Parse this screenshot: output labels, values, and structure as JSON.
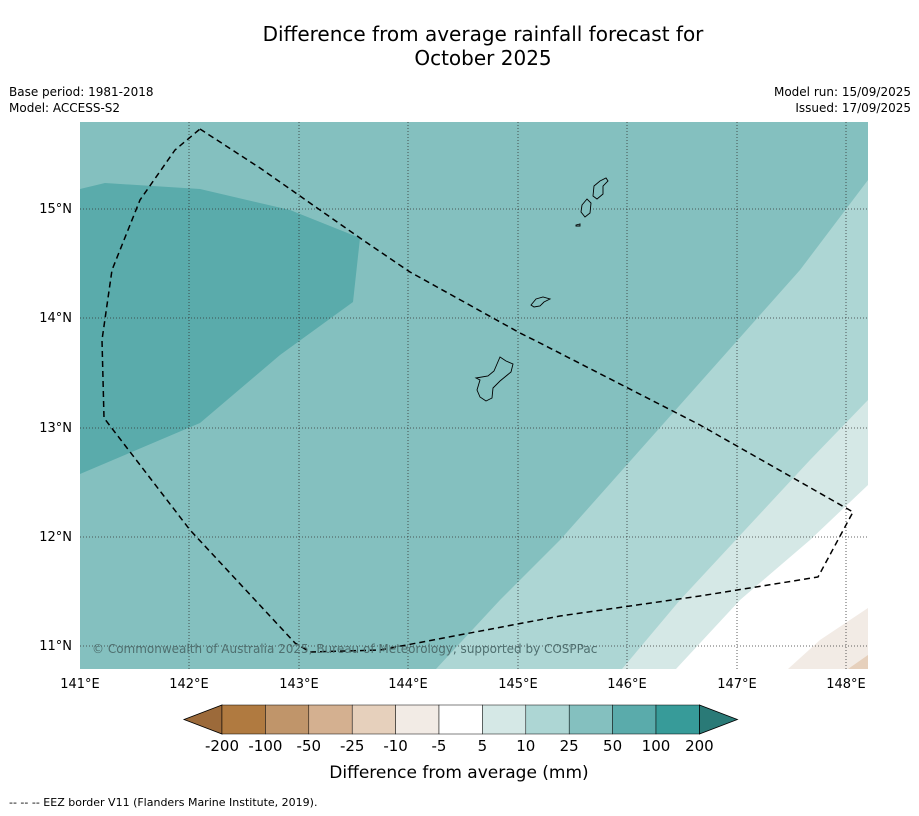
{
  "title_line1": "Difference from average rainfall forecast for",
  "title_line2": "October 2025",
  "base_period": "Base period: 1981-2018",
  "model": "Model: ACCESS-S2",
  "model_run": "Model run: 15/09/2025",
  "issued": "Issued: 17/09/2025",
  "copyright": "© Commonwealth of Australia 2025, Bureau of Meteorology, supported by COSPPac",
  "lat_labels": [
    "15°N",
    "14°N",
    "13°N",
    "12°N",
    "11°N"
  ],
  "lon_labels": [
    "141°E",
    "142°E",
    "143°E",
    "144°E",
    "145°E",
    "146°E",
    "147°E",
    "148°E"
  ],
  "colorbar": {
    "title": "Difference from average (mm)",
    "ticks": [
      "-200",
      "-100",
      "-50",
      "-25",
      "-10",
      "-5",
      "5",
      "10",
      "25",
      "50",
      "100",
      "200"
    ],
    "colors": [
      "#9c6a3a",
      "#b07a40",
      "#c0956a",
      "#d4b090",
      "#e6d0bc",
      "#f2ebe5",
      "#ffffff",
      "#d5e8e6",
      "#add6d4",
      "#84c0bf",
      "#5aabab",
      "#379b99",
      "#2a7a77"
    ]
  },
  "legend_note": "--  --  -- EEZ border V11 (Flanders Marine Institute, 2019)."
}
